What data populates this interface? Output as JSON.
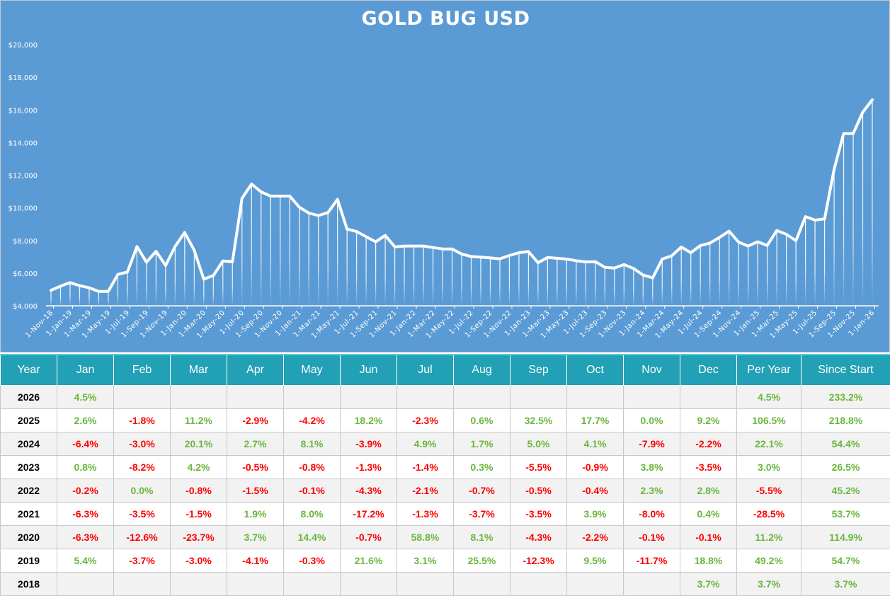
{
  "chart_data": {
    "type": "line",
    "title": "GOLD BUG USD",
    "xlabel": "",
    "ylabel": "",
    "ylim": [
      4000,
      20000
    ],
    "yticks": [
      "$4,000",
      "$6,000",
      "$8,000",
      "$10,000",
      "$12,000",
      "$14,000",
      "$16,000",
      "$18,000",
      "$20,000"
    ],
    "ytick_values": [
      4000,
      6000,
      8000,
      10000,
      12000,
      14000,
      16000,
      18000,
      20000
    ],
    "x_start": "1-Nov-18",
    "x_end": "1-Jan-26",
    "x_label_every_months": 2,
    "x": [
      "1-Nov-18",
      "1-Dec-18",
      "1-Jan-19",
      "1-Feb-19",
      "1-Mar-19",
      "1-Apr-19",
      "1-May-19",
      "1-Jun-19",
      "1-Jul-19",
      "1-Aug-19",
      "1-Sep-19",
      "1-Oct-19",
      "1-Nov-19",
      "1-Dec-19",
      "1-Jan-20",
      "1-Feb-20",
      "1-Mar-20",
      "1-Apr-20",
      "1-May-20",
      "1-Jun-20",
      "1-Jul-20",
      "1-Aug-20",
      "1-Sep-20",
      "1-Oct-20",
      "1-Nov-20",
      "1-Dec-20",
      "1-Jan-21",
      "1-Feb-21",
      "1-Mar-21",
      "1-Apr-21",
      "1-May-21",
      "1-Jun-21",
      "1-Jul-21",
      "1-Aug-21",
      "1-Sep-21",
      "1-Oct-21",
      "1-Nov-21",
      "1-Dec-21",
      "1-Jan-22",
      "1-Feb-22",
      "1-Mar-22",
      "1-Apr-22",
      "1-May-22",
      "1-Jun-22",
      "1-Jul-22",
      "1-Aug-22",
      "1-Sep-22",
      "1-Oct-22",
      "1-Nov-22",
      "1-Dec-22",
      "1-Jan-23",
      "1-Feb-23",
      "1-Mar-23",
      "1-Apr-23",
      "1-May-23",
      "1-Jun-23",
      "1-Jul-23",
      "1-Aug-23",
      "1-Sep-23",
      "1-Oct-23",
      "1-Nov-23",
      "1-Dec-23",
      "1-Jan-24",
      "1-Feb-24",
      "1-Mar-24",
      "1-Apr-24",
      "1-May-24",
      "1-Jun-24",
      "1-Jul-24",
      "1-Aug-24",
      "1-Sep-24",
      "1-Oct-24",
      "1-Nov-24",
      "1-Dec-24",
      "1-Jan-25",
      "1-Feb-25",
      "1-Mar-25",
      "1-Apr-25",
      "1-May-25",
      "1-Jun-25",
      "1-Jul-25",
      "1-Aug-25",
      "1-Sep-25",
      "1-Oct-25",
      "1-Nov-25",
      "1-Dec-25",
      "1-Jan-26"
    ],
    "values": [
      4950,
      5200,
      5420,
      5230,
      5100,
      4880,
      4880,
      5920,
      6070,
      7630,
      6670,
      7340,
      6470,
      7630,
      8490,
      7400,
      5630,
      5850,
      6750,
      6700,
      10580,
      11460,
      10980,
      10720,
      10720,
      10720,
      10040,
      9680,
      9530,
      9710,
      10520,
      8700,
      8550,
      8230,
      7920,
      8310,
      7610,
      7660,
      7660,
      7660,
      7570,
      7480,
      7480,
      7170,
      7020,
      6980,
      6930,
      6880,
      7080,
      7250,
      7320,
      6640,
      6960,
      6910,
      6860,
      6760,
      6690,
      6700,
      6360,
      6310,
      6530,
      6280,
      5880,
      5710,
      6860,
      7060,
      7600,
      7250,
      7690,
      7840,
      8190,
      8570,
      7900,
      7660,
      7920,
      7700,
      8610,
      8380,
      7990,
      9460,
      9250,
      9320,
      12350,
      14550,
      14550,
      15860,
      16620
    ],
    "grid": false,
    "legend": "none",
    "colors": {
      "background": "#5b9bd5",
      "line": "#ffffff"
    }
  },
  "table": {
    "headers": [
      "Year",
      "Jan",
      "Feb",
      "Mar",
      "Apr",
      "May",
      "Jun",
      "Jul",
      "Aug",
      "Sep",
      "Oct",
      "Nov",
      "Dec",
      "Per Year",
      "Since Start"
    ],
    "rows": [
      [
        "2026",
        "4.5%",
        "",
        "",
        "",
        "",
        "",
        "",
        "",
        "",
        "",
        "",
        "",
        "4.5%",
        "233.2%"
      ],
      [
        "2025",
        "2.6%",
        "-1.8%",
        "11.2%",
        "-2.9%",
        "-4.2%",
        "18.2%",
        "-2.3%",
        "0.6%",
        "32.5%",
        "17.7%",
        "0.0%",
        "9.2%",
        "106.5%",
        "218.8%"
      ],
      [
        "2024",
        "-6.4%",
        "-3.0%",
        "20.1%",
        "2.7%",
        "8.1%",
        "-3.9%",
        "4.9%",
        "1.7%",
        "5.0%",
        "4.1%",
        "-7.9%",
        "-2.2%",
        "22.1%",
        "54.4%"
      ],
      [
        "2023",
        "0.8%",
        "-8.2%",
        "4.2%",
        "-0.5%",
        "-0.8%",
        "-1.3%",
        "-1.4%",
        "0.3%",
        "-5.5%",
        "-0.9%",
        "3.8%",
        "-3.5%",
        "3.0%",
        "26.5%"
      ],
      [
        "2022",
        "-0.2%",
        "0.0%",
        "-0.8%",
        "-1.5%",
        "-0.1%",
        "-4.3%",
        "-2.1%",
        "-0.7%",
        "-0.5%",
        "-0.4%",
        "2.3%",
        "2.8%",
        "-5.5%",
        "45.2%"
      ],
      [
        "2021",
        "-6.3%",
        "-3.5%",
        "-1.5%",
        "1.9%",
        "8.0%",
        "-17.2%",
        "-1.3%",
        "-3.7%",
        "-3.5%",
        "3.9%",
        "-8.0%",
        "0.4%",
        "-28.5%",
        "53.7%"
      ],
      [
        "2020",
        "-6.3%",
        "-12.6%",
        "-23.7%",
        "3.7%",
        "14.4%",
        "-0.7%",
        "58.8%",
        "8.1%",
        "-4.3%",
        "-2.2%",
        "-0.1%",
        "-0.1%",
        "11.2%",
        "114.9%"
      ],
      [
        "2019",
        "5.4%",
        "-3.7%",
        "-3.0%",
        "-4.1%",
        "-0.3%",
        "21.6%",
        "3.1%",
        "25.5%",
        "-12.3%",
        "9.5%",
        "-11.7%",
        "18.8%",
        "49.2%",
        "54.7%"
      ],
      [
        "2018",
        "",
        "",
        "",
        "",
        "",
        "",
        "",
        "",
        "",
        "",
        "",
        "3.7%",
        "3.7%",
        "3.7%"
      ]
    ],
    "colors": {
      "header": "#22a0b5",
      "positive": "#6ab63c",
      "negative": "#ff0000"
    }
  }
}
